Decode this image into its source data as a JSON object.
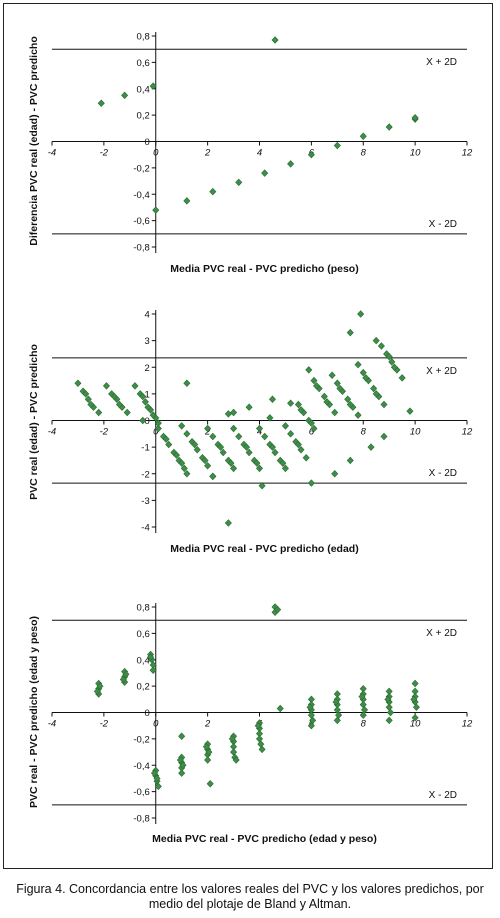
{
  "caption": {
    "figure_label": "Figura",
    "figure_number": "4",
    "text": ". Concordancia entre los valores reales del PVC y los valores predichos, por medio del plotaje de Bland y Altman."
  },
  "colors": {
    "points": "#3e8e47",
    "points_edge": "#2a6b33",
    "lines": "#111111"
  },
  "chart_data": [
    {
      "type": "scatter",
      "xlabel": "Media PVC real - PVC predicho (peso)",
      "ylabel": "Diferencia PVC real (edad) - PVC predicho",
      "xlim": [
        -4,
        12
      ],
      "ylim": [
        -0.8,
        0.8
      ],
      "xticks": [
        -4,
        -2,
        0,
        2,
        4,
        6,
        8,
        10,
        12
      ],
      "xtick_labels": [
        "-4",
        "-2",
        "0",
        "2",
        "4",
        "6",
        "8",
        "10",
        "12"
      ],
      "yticks": [
        -0.8,
        -0.6,
        -0.4,
        -0.2,
        0,
        0.2,
        0.4,
        0.6,
        0.8
      ],
      "ytick_labels": [
        "-0,8",
        "-0,6",
        "-0,4",
        "-0,2",
        "0",
        "0,2",
        "0,4",
        "0,6",
        "0,8"
      ],
      "hlines": [
        0.7,
        0,
        -0.7
      ],
      "annotations": [
        {
          "text": "X + 2D",
          "y": 0.7
        },
        {
          "text": "X - 2D",
          "y": -0.7
        }
      ],
      "points": [
        [
          -2.1,
          0.29
        ],
        [
          -1.2,
          0.35
        ],
        [
          -0.1,
          0.42
        ],
        [
          4.6,
          0.77
        ],
        [
          0.0,
          -0.52
        ],
        [
          1.2,
          -0.45
        ],
        [
          2.2,
          -0.38
        ],
        [
          3.2,
          -0.31
        ],
        [
          4.2,
          -0.24
        ],
        [
          5.2,
          -0.17
        ],
        [
          6.0,
          -0.1
        ],
        [
          7.0,
          -0.03
        ],
        [
          8.0,
          0.04
        ],
        [
          9.0,
          0.11
        ],
        [
          10.0,
          0.17
        ],
        [
          10.0,
          0.18
        ]
      ]
    },
    {
      "type": "scatter",
      "xlabel": "Media PVC real - PVC predicho (edad)",
      "ylabel": "PVC real (edad) - PVC predicho",
      "xlim": [
        -4,
        12
      ],
      "ylim": [
        -4,
        4
      ],
      "xticks": [
        -4,
        -2,
        0,
        2,
        4,
        6,
        8,
        10,
        12
      ],
      "xtick_labels": [
        "-4",
        "-2",
        "0",
        "2",
        "4",
        "6",
        "8",
        "10",
        "12"
      ],
      "yticks": [
        -4,
        -3,
        -2,
        -1,
        0,
        1,
        2,
        3,
        4
      ],
      "ytick_labels": [
        "-4",
        "-3",
        "-2",
        "-1",
        "0",
        "1",
        "2",
        "3",
        "4"
      ],
      "hlines": [
        2.35,
        0,
        -2.35
      ],
      "annotations": [
        {
          "text": "X + 2D",
          "y": 2.35
        },
        {
          "text": "X - 2D",
          "y": -2.35
        }
      ],
      "points": [
        [
          -3.0,
          1.4
        ],
        [
          -2.8,
          1.1
        ],
        [
          -2.6,
          0.8
        ],
        [
          -2.4,
          0.5
        ],
        [
          -2.2,
          0.3
        ],
        [
          -2.7,
          1.0
        ],
        [
          -2.5,
          0.6
        ],
        [
          -1.9,
          1.3
        ],
        [
          -1.7,
          1.0
        ],
        [
          -1.5,
          0.8
        ],
        [
          -1.3,
          0.5
        ],
        [
          -1.1,
          0.3
        ],
        [
          -1.6,
          0.9
        ],
        [
          -1.4,
          0.6
        ],
        [
          -0.8,
          1.3
        ],
        [
          -0.6,
          1.0
        ],
        [
          -0.4,
          0.7
        ],
        [
          -0.2,
          0.4
        ],
        [
          0.0,
          0.1
        ],
        [
          -0.5,
          0.9
        ],
        [
          -0.3,
          0.5
        ],
        [
          -0.1,
          0.2
        ],
        [
          0.1,
          -0.1
        ],
        [
          0.1,
          -0.3
        ],
        [
          0.3,
          -0.6
        ],
        [
          0.5,
          -0.9
        ],
        [
          0.7,
          -1.2
        ],
        [
          0.9,
          -1.5
        ],
        [
          1.1,
          -1.8
        ],
        [
          0.4,
          -0.7
        ],
        [
          0.8,
          -1.3
        ],
        [
          1.0,
          -1.6
        ],
        [
          1.2,
          -2.0
        ],
        [
          1.0,
          -0.2
        ],
        [
          1.2,
          -0.5
        ],
        [
          1.4,
          -0.8
        ],
        [
          1.6,
          -1.1
        ],
        [
          1.8,
          -1.4
        ],
        [
          2.0,
          -1.7
        ],
        [
          2.2,
          -2.1
        ],
        [
          1.5,
          -0.9
        ],
        [
          1.9,
          -1.5
        ],
        [
          2.0,
          -0.3
        ],
        [
          2.2,
          -0.6
        ],
        [
          2.4,
          -0.9
        ],
        [
          2.6,
          -1.2
        ],
        [
          2.8,
          -1.5
        ],
        [
          3.0,
          -1.8
        ],
        [
          2.5,
          -1.0
        ],
        [
          2.9,
          -1.6
        ],
        [
          3.0,
          -0.3
        ],
        [
          3.2,
          -0.6
        ],
        [
          3.4,
          -0.9
        ],
        [
          3.6,
          -1.2
        ],
        [
          3.8,
          -1.5
        ],
        [
          4.0,
          -1.8
        ],
        [
          3.5,
          -1.0
        ],
        [
          3.9,
          -1.6
        ],
        [
          4.0,
          -0.3
        ],
        [
          4.2,
          -0.6
        ],
        [
          4.4,
          -0.9
        ],
        [
          4.6,
          -1.2
        ],
        [
          4.8,
          -1.5
        ],
        [
          5.0,
          -1.8
        ],
        [
          4.5,
          -1.0
        ],
        [
          4.9,
          -1.6
        ],
        [
          5.0,
          -0.2
        ],
        [
          5.2,
          -0.5
        ],
        [
          5.4,
          -0.8
        ],
        [
          5.6,
          -1.1
        ],
        [
          5.8,
          -1.4
        ],
        [
          5.5,
          -0.9
        ],
        [
          5.5,
          0.6
        ],
        [
          5.7,
          0.3
        ],
        [
          5.9,
          0.0
        ],
        [
          6.1,
          -0.3
        ],
        [
          5.6,
          0.4
        ],
        [
          6.0,
          -0.1
        ],
        [
          5.9,
          1.9
        ],
        [
          6.1,
          1.5
        ],
        [
          6.3,
          1.2
        ],
        [
          6.5,
          0.9
        ],
        [
          6.7,
          0.6
        ],
        [
          6.9,
          0.3
        ],
        [
          6.2,
          1.3
        ],
        [
          6.6,
          0.7
        ],
        [
          6.8,
          1.7
        ],
        [
          7.0,
          1.4
        ],
        [
          7.2,
          1.1
        ],
        [
          7.4,
          0.8
        ],
        [
          7.6,
          0.5
        ],
        [
          7.8,
          0.2
        ],
        [
          7.1,
          1.2
        ],
        [
          7.5,
          0.6
        ],
        [
          7.8,
          2.1
        ],
        [
          8.0,
          1.8
        ],
        [
          8.2,
          1.5
        ],
        [
          8.4,
          1.2
        ],
        [
          8.6,
          0.9
        ],
        [
          8.8,
          0.6
        ],
        [
          8.1,
          1.6
        ],
        [
          8.5,
          1.0
        ],
        [
          8.7,
          2.8
        ],
        [
          8.9,
          2.5
        ],
        [
          9.1,
          2.2
        ],
        [
          9.3,
          1.9
        ],
        [
          9.5,
          1.6
        ],
        [
          9.0,
          2.4
        ],
        [
          9.2,
          2.0
        ],
        [
          -0.5,
          0.0
        ],
        [
          1.2,
          1.4
        ],
        [
          2.8,
          0.25
        ],
        [
          3.6,
          0.5
        ],
        [
          4.5,
          0.8
        ],
        [
          5.2,
          0.65
        ],
        [
          3.0,
          0.3
        ],
        [
          7.5,
          3.3
        ],
        [
          7.9,
          4.0
        ],
        [
          8.5,
          3.0
        ],
        [
          9.8,
          0.35
        ],
        [
          8.8,
          -0.6
        ],
        [
          7.5,
          -1.5
        ],
        [
          6.9,
          -2.0
        ],
        [
          6.0,
          -2.35
        ],
        [
          4.1,
          -2.45
        ],
        [
          2.8,
          -3.85
        ],
        [
          2.2,
          -2.1
        ],
        [
          8.3,
          -1.0
        ],
        [
          4.4,
          0.1
        ]
      ]
    },
    {
      "type": "scatter",
      "xlabel": "Media PVC real - PVC predicho (edad y peso)",
      "ylabel": "PVC real - PVC predicho (edad y peso)",
      "xlim": [
        -4,
        12
      ],
      "ylim": [
        -0.8,
        0.8
      ],
      "xticks": [
        -4,
        -2,
        0,
        2,
        4,
        6,
        8,
        10,
        12
      ],
      "xtick_labels": [
        "-4",
        "-2",
        "0",
        "2",
        "4",
        "6",
        "8",
        "10",
        "12"
      ],
      "yticks": [
        -0.8,
        -0.6,
        -0.4,
        -0.2,
        0,
        0.2,
        0.4,
        0.6,
        0.8
      ],
      "ytick_labels": [
        "-0,8",
        "-0,6",
        "-0,4",
        "-0,2",
        "0",
        "0,2",
        "0,4",
        "0,6",
        "0,8"
      ],
      "hlines": [
        0.7,
        0,
        -0.7
      ],
      "annotations": [
        {
          "text": "X + 2D",
          "y": 0.7
        },
        {
          "text": "X - 2D",
          "y": -0.7
        }
      ],
      "points": [
        [
          -2.2,
          0.22
        ],
        [
          -2.2,
          0.18
        ],
        [
          -2.2,
          0.14
        ],
        [
          -2.15,
          0.2
        ],
        [
          -2.25,
          0.16
        ],
        [
          -1.2,
          0.31
        ],
        [
          -1.2,
          0.27
        ],
        [
          -1.2,
          0.23
        ],
        [
          -1.15,
          0.29
        ],
        [
          -1.25,
          0.25
        ],
        [
          -0.2,
          0.44
        ],
        [
          -0.15,
          0.4
        ],
        [
          -0.1,
          0.36
        ],
        [
          -0.1,
          0.32
        ],
        [
          -0.2,
          0.42
        ],
        [
          0.0,
          -0.44
        ],
        [
          0.0,
          -0.48
        ],
        [
          0.05,
          -0.52
        ],
        [
          0.1,
          -0.56
        ],
        [
          -0.05,
          -0.46
        ],
        [
          0.05,
          -0.5
        ],
        [
          1.0,
          -0.18
        ],
        [
          1.0,
          -0.34
        ],
        [
          1.0,
          -0.38
        ],
        [
          1.0,
          -0.42
        ],
        [
          1.0,
          -0.46
        ],
        [
          1.05,
          -0.4
        ],
        [
          0.95,
          -0.36
        ],
        [
          2.0,
          -0.24
        ],
        [
          2.0,
          -0.28
        ],
        [
          2.0,
          -0.32
        ],
        [
          2.0,
          -0.36
        ],
        [
          2.05,
          -0.3
        ],
        [
          1.95,
          -0.26
        ],
        [
          2.1,
          -0.54
        ],
        [
          3.0,
          -0.18
        ],
        [
          3.0,
          -0.22
        ],
        [
          3.0,
          -0.26
        ],
        [
          3.0,
          -0.3
        ],
        [
          3.05,
          -0.34
        ],
        [
          2.95,
          -0.2
        ],
        [
          3.1,
          -0.36
        ],
        [
          4.0,
          -0.08
        ],
        [
          4.0,
          -0.12
        ],
        [
          4.0,
          -0.16
        ],
        [
          4.0,
          -0.2
        ],
        [
          4.05,
          -0.24
        ],
        [
          3.95,
          -0.1
        ],
        [
          4.1,
          -0.28
        ],
        [
          4.6,
          0.8
        ],
        [
          4.6,
          0.76
        ],
        [
          4.7,
          0.78
        ],
        [
          4.8,
          0.03
        ],
        [
          6.0,
          0.1
        ],
        [
          6.0,
          0.06
        ],
        [
          6.0,
          0.02
        ],
        [
          6.0,
          -0.02
        ],
        [
          6.05,
          -0.06
        ],
        [
          5.95,
          0.04
        ],
        [
          6.0,
          -0.1
        ],
        [
          7.0,
          0.14
        ],
        [
          7.0,
          0.1
        ],
        [
          7.0,
          0.06
        ],
        [
          7.0,
          0.02
        ],
        [
          7.05,
          -0.02
        ],
        [
          6.95,
          0.08
        ],
        [
          7.0,
          -0.06
        ],
        [
          8.0,
          0.18
        ],
        [
          8.0,
          0.14
        ],
        [
          8.0,
          0.1
        ],
        [
          8.0,
          0.06
        ],
        [
          8.05,
          0.02
        ],
        [
          7.95,
          0.12
        ],
        [
          8.0,
          -0.02
        ],
        [
          9.0,
          0.16
        ],
        [
          9.0,
          0.12
        ],
        [
          9.0,
          0.08
        ],
        [
          9.0,
          0.04
        ],
        [
          9.05,
          0.0
        ],
        [
          8.95,
          0.1
        ],
        [
          9.0,
          -0.06
        ],
        [
          10.0,
          0.22
        ],
        [
          10.0,
          0.16
        ],
        [
          10.0,
          0.12
        ],
        [
          10.0,
          0.08
        ],
        [
          10.05,
          0.04
        ],
        [
          9.95,
          0.1
        ],
        [
          10.0,
          -0.04
        ]
      ]
    }
  ]
}
